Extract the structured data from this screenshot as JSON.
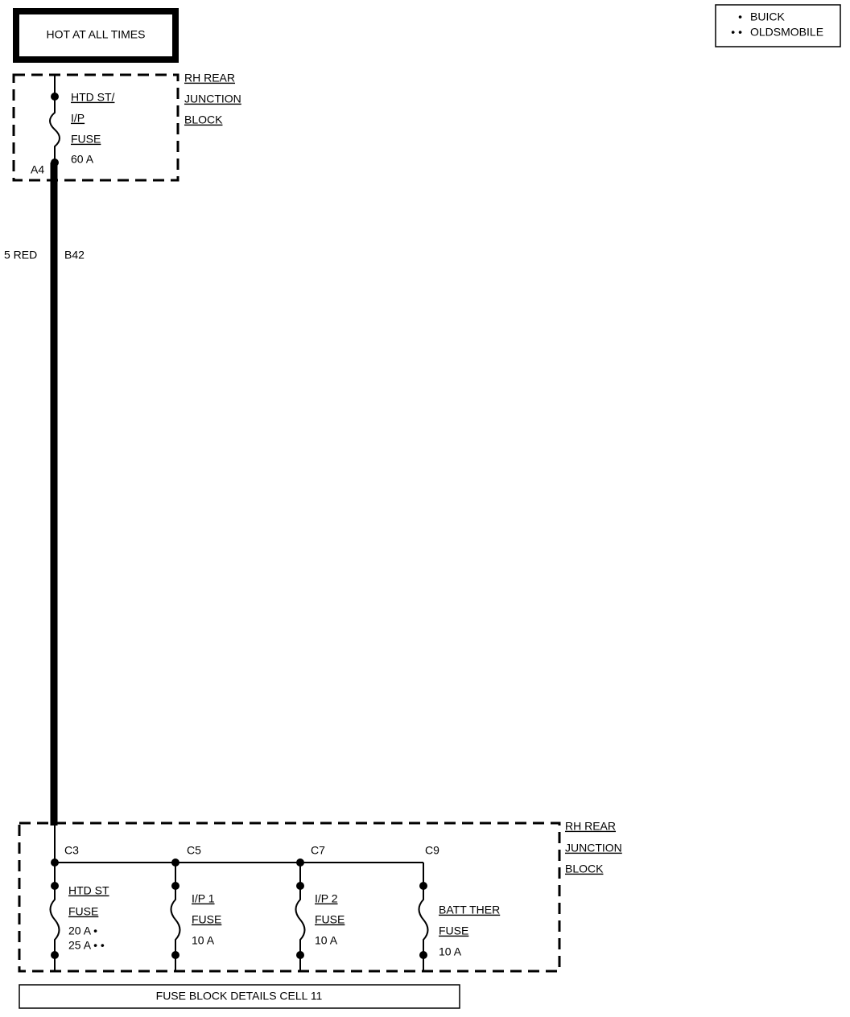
{
  "source_box": "HOT AT ALL TIMES",
  "legend": [
    {
      "symbol": "•",
      "label": "BUICK"
    },
    {
      "symbol": "• •",
      "label": "OLDSMOBILE"
    }
  ],
  "top_block": {
    "label_lines": [
      "RH REAR",
      "JUNCTION",
      "BLOCK"
    ],
    "fuse_lines": [
      "HTD ST/",
      "I/P",
      "FUSE",
      "60 A"
    ],
    "terminal": "A4"
  },
  "wire": {
    "gauge_color": "5 RED",
    "circuit": "B42"
  },
  "bottom_block": {
    "label_lines": [
      "RH REAR",
      "JUNCTION",
      "BLOCK"
    ],
    "fuses": [
      {
        "terminal": "C3",
        "lines": [
          "HTD ST",
          "FUSE",
          "20 A •",
          "25 A • •"
        ]
      },
      {
        "terminal": "C5",
        "lines": [
          "I/P 1",
          "FUSE",
          "10 A"
        ]
      },
      {
        "terminal": "C7",
        "lines": [
          "I/P 2",
          "FUSE",
          "10 A"
        ]
      },
      {
        "terminal": "C9",
        "lines": [
          "BATT THER",
          "FUSE",
          "10 A"
        ]
      }
    ]
  },
  "footer": "FUSE BLOCK DETAILS CELL 11"
}
